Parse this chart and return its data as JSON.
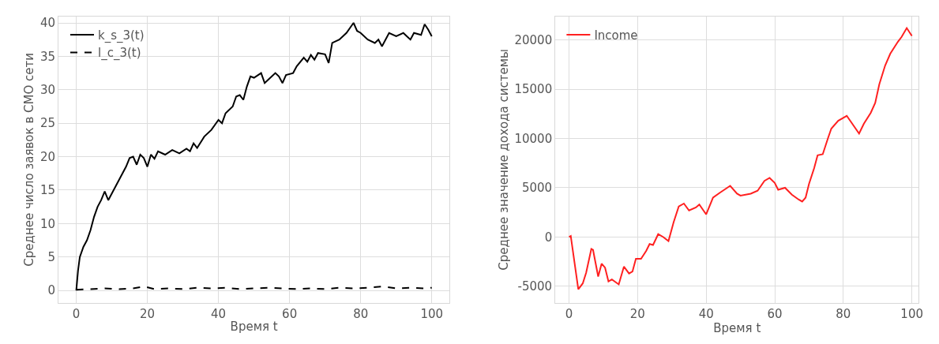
{
  "chart_data": [
    {
      "type": "line",
      "xlabel": "Время t",
      "ylabel": "Среднее число заявок в СМО сети",
      "xlim": [
        -5,
        105
      ],
      "ylim": [
        -1.9,
        41
      ],
      "xticks": [
        0,
        20,
        40,
        60,
        80,
        100
      ],
      "yticks": [
        0,
        5,
        10,
        15,
        20,
        25,
        30,
        35,
        40
      ],
      "grid": true,
      "legend": "top left",
      "series": [
        {
          "name": "k_s_3(t)",
          "color": "#000000",
          "line_style": "solid",
          "x": [
            0,
            0.5,
            1,
            2,
            3,
            4,
            5,
            6,
            7,
            8,
            9,
            10,
            12,
            14,
            15,
            16,
            17,
            18,
            19,
            20,
            21,
            22,
            23,
            25,
            27,
            29,
            31,
            32,
            33,
            34,
            36,
            38,
            40,
            41,
            42,
            44,
            45,
            46,
            47,
            48,
            49,
            50,
            52,
            53,
            54,
            56,
            57,
            58,
            59,
            61,
            62,
            64,
            65,
            66,
            67,
            68,
            70,
            71,
            72,
            74,
            76,
            78,
            79,
            80,
            82,
            84,
            85,
            86,
            88,
            90,
            92,
            93,
            94,
            95,
            97,
            98,
            99,
            100
          ],
          "values": [
            0,
            3,
            5,
            6.5,
            7.5,
            9,
            11,
            12.5,
            13.5,
            14.8,
            13.5,
            14.5,
            16.5,
            18.5,
            19.8,
            20,
            18.8,
            20.3,
            19.8,
            18.5,
            20.3,
            19.7,
            20.8,
            20.3,
            21,
            20.5,
            21.2,
            20.8,
            22,
            21.3,
            23,
            24,
            25.5,
            25,
            26.5,
            27.5,
            29,
            29.2,
            28.5,
            30.5,
            32,
            31.8,
            32.5,
            31,
            31.5,
            32.5,
            32,
            31,
            32.2,
            32.5,
            33.5,
            34.8,
            34.2,
            35.2,
            34.5,
            35.5,
            35.3,
            34,
            37,
            37.5,
            38.5,
            40,
            38.8,
            38.5,
            37.5,
            37,
            37.5,
            36.5,
            38.5,
            38,
            38.5,
            38,
            37.5,
            38.5,
            38.2,
            39.8,
            39,
            38
          ]
        },
        {
          "name": "l_c_3(t)",
          "color": "#000000",
          "line_style": "dashed",
          "x": [
            0,
            4,
            8,
            12,
            16,
            19,
            22,
            26,
            30,
            34,
            38,
            42,
            46,
            50,
            54,
            58,
            62,
            66,
            70,
            74,
            78,
            82,
            86,
            90,
            94,
            98,
            100
          ],
          "values": [
            0.1,
            0.2,
            0.3,
            0.2,
            0.3,
            0.6,
            0.2,
            0.3,
            0.2,
            0.4,
            0.3,
            0.4,
            0.2,
            0.3,
            0.4,
            0.3,
            0.2,
            0.3,
            0.2,
            0.4,
            0.3,
            0.4,
            0.6,
            0.3,
            0.4,
            0.3,
            0.4
          ]
        }
      ]
    },
    {
      "type": "line",
      "xlabel": "Время t",
      "ylabel": "Среднее значение дохода системы",
      "xlim": [
        -4,
        102
      ],
      "ylim": [
        -6700,
        22400
      ],
      "xticks": [
        0,
        20,
        40,
        60,
        80,
        100
      ],
      "yticks": [
        -5000,
        0,
        5000,
        10000,
        15000,
        20000
      ],
      "grid": true,
      "legend": "top left",
      "series": [
        {
          "name": "Income",
          "color": "#ff2020",
          "line_style": "solid",
          "x": [
            0,
            0.5,
            2.7,
            4,
            5,
            6.5,
            7,
            8.5,
            9.5,
            10.5,
            11.5,
            12.5,
            14.5,
            16,
            17.5,
            18.5,
            19.5,
            21,
            22.5,
            23.5,
            24.5,
            26,
            27.5,
            29,
            30.5,
            32,
            33.5,
            35,
            37,
            38,
            40,
            42,
            44,
            47,
            49,
            50,
            53,
            55,
            57,
            58.5,
            60,
            61,
            63,
            65,
            67,
            68,
            69,
            70,
            71.5,
            72.5,
            74,
            75.5,
            76.5,
            78.5,
            81,
            82,
            84.6,
            86,
            88,
            89.3,
            90.5,
            92.2,
            93.7,
            95.9,
            97,
            98.5,
            100
          ],
          "values": [
            0,
            100,
            -5300,
            -4700,
            -3600,
            -1200,
            -1300,
            -4000,
            -2700,
            -3100,
            -4500,
            -4300,
            -4800,
            -3000,
            -3700,
            -3500,
            -2200,
            -2200,
            -1400,
            -700,
            -800,
            300,
            0,
            -400,
            1500,
            3100,
            3400,
            2700,
            3000,
            3300,
            2300,
            4000,
            4500,
            5200,
            4400,
            4200,
            4400,
            4700,
            5700,
            6000,
            5500,
            4800,
            5000,
            4300,
            3800,
            3600,
            4000,
            5400,
            7000,
            8300,
            8400,
            10000,
            11000,
            11800,
            12300,
            11800,
            10500,
            11500,
            12600,
            13600,
            15500,
            17400,
            18600,
            19800,
            20300,
            21200,
            20400
          ]
        }
      ]
    }
  ]
}
